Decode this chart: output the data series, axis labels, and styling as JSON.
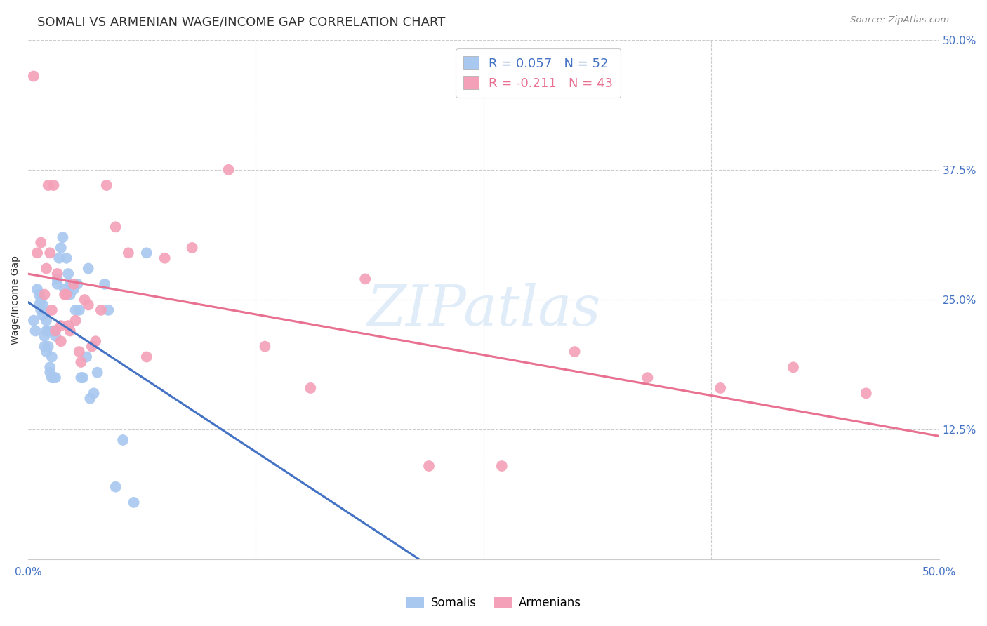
{
  "title": "SOMALI VS ARMENIAN WAGE/INCOME GAP CORRELATION CHART",
  "source": "Source: ZipAtlas.com",
  "ylabel": "Wage/Income Gap",
  "xlim": [
    0.0,
    0.5
  ],
  "ylim": [
    0.0,
    0.5
  ],
  "watermark": "ZIPatlas",
  "somali_color": "#a8c8f0",
  "armenian_color": "#f4a0b8",
  "somali_line_color": "#4472c4",
  "armenian_line_color": "#e87090",
  "R_somali": 0.057,
  "N_somali": 52,
  "R_armenian": -0.211,
  "N_armenian": 43,
  "legend_label_somali": "Somalis",
  "legend_label_armenian": "Armenians",
  "somali_x": [
    0.003,
    0.004,
    0.005,
    0.006,
    0.006,
    0.007,
    0.007,
    0.008,
    0.008,
    0.009,
    0.009,
    0.01,
    0.01,
    0.01,
    0.011,
    0.011,
    0.012,
    0.012,
    0.013,
    0.013,
    0.014,
    0.014,
    0.015,
    0.015,
    0.016,
    0.016,
    0.017,
    0.018,
    0.019,
    0.02,
    0.021,
    0.022,
    0.023,
    0.023,
    0.024,
    0.025,
    0.026,
    0.027,
    0.028,
    0.029,
    0.03,
    0.032,
    0.033,
    0.034,
    0.036,
    0.038,
    0.042,
    0.044,
    0.048,
    0.052,
    0.058,
    0.065
  ],
  "somali_y": [
    0.23,
    0.22,
    0.26,
    0.255,
    0.245,
    0.24,
    0.25,
    0.235,
    0.245,
    0.205,
    0.215,
    0.22,
    0.23,
    0.2,
    0.205,
    0.22,
    0.18,
    0.185,
    0.195,
    0.175,
    0.175,
    0.22,
    0.175,
    0.215,
    0.27,
    0.265,
    0.29,
    0.3,
    0.31,
    0.26,
    0.29,
    0.275,
    0.255,
    0.265,
    0.265,
    0.26,
    0.24,
    0.265,
    0.24,
    0.175,
    0.175,
    0.195,
    0.28,
    0.155,
    0.16,
    0.18,
    0.265,
    0.24,
    0.07,
    0.115,
    0.055,
    0.295
  ],
  "armenian_x": [
    0.003,
    0.005,
    0.007,
    0.009,
    0.011,
    0.013,
    0.014,
    0.016,
    0.018,
    0.02,
    0.021,
    0.022,
    0.023,
    0.025,
    0.026,
    0.028,
    0.029,
    0.031,
    0.033,
    0.035,
    0.037,
    0.04,
    0.043,
    0.048,
    0.055,
    0.065,
    0.075,
    0.09,
    0.11,
    0.13,
    0.155,
    0.185,
    0.22,
    0.26,
    0.3,
    0.34,
    0.38,
    0.42,
    0.46,
    0.01,
    0.012,
    0.015,
    0.018
  ],
  "armenian_y": [
    0.465,
    0.295,
    0.305,
    0.255,
    0.36,
    0.24,
    0.36,
    0.275,
    0.225,
    0.255,
    0.255,
    0.225,
    0.22,
    0.265,
    0.23,
    0.2,
    0.19,
    0.25,
    0.245,
    0.205,
    0.21,
    0.24,
    0.36,
    0.32,
    0.295,
    0.195,
    0.29,
    0.3,
    0.375,
    0.205,
    0.165,
    0.27,
    0.09,
    0.09,
    0.2,
    0.175,
    0.165,
    0.185,
    0.16,
    0.28,
    0.295,
    0.22,
    0.21
  ],
  "background_color": "#ffffff",
  "grid_color": "#cccccc",
  "title_color": "#333333",
  "axis_color": "#4472c4",
  "title_fontsize": 13,
  "label_fontsize": 10,
  "tick_fontsize": 11
}
